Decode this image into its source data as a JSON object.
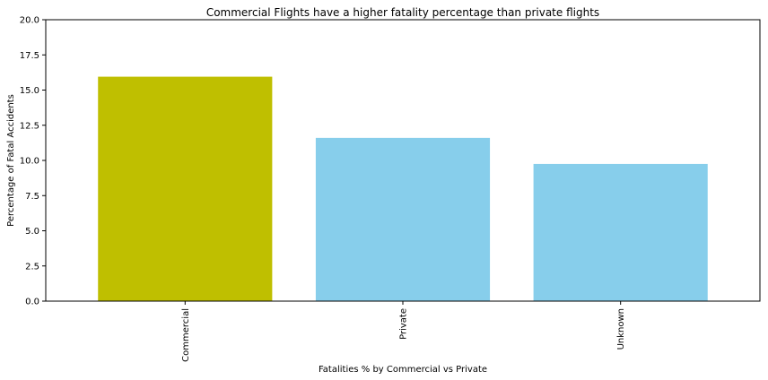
{
  "chart_data": {
    "type": "bar",
    "title": "Commercial Flights have a higher fatality percentage than private flights",
    "xlabel": "Fatalities % by Commercial vs Private",
    "ylabel": "Percentage of Fatal Accidents",
    "categories": [
      "Commercial",
      "Private",
      "Unknown"
    ],
    "values": [
      15.95,
      11.6,
      9.75
    ],
    "colors": [
      "#bfbf00",
      "#87ceeb",
      "#87ceeb"
    ],
    "ylim": [
      0,
      20
    ],
    "yticks": [
      "0.0",
      "2.5",
      "5.0",
      "7.5",
      "10.0",
      "12.5",
      "15.0",
      "17.5",
      "20.0"
    ],
    "ytick_values": [
      0,
      2.5,
      5,
      7.5,
      10,
      12.5,
      15,
      17.5,
      20
    ],
    "grid": false,
    "legend": "none"
  }
}
